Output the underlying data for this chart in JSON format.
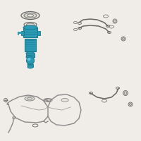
{
  "bg_color": "#f0ede8",
  "line_color": "#666666",
  "teal_color": "#2b9bb5",
  "teal_dark": "#1a7a8f",
  "teal_light": "#5bc8e0",
  "gray_fill": "#d8d5ce",
  "light_fill": "#e8e5de"
}
